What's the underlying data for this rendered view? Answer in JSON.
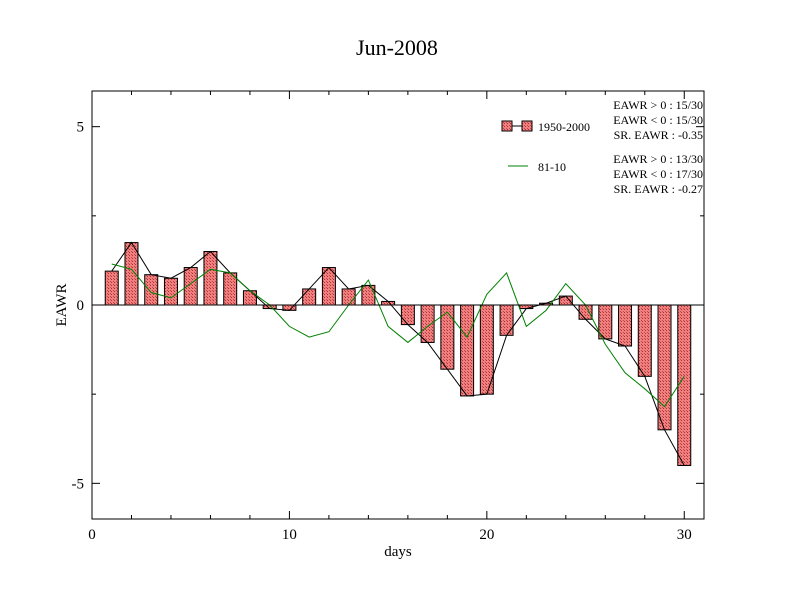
{
  "chart_data": {
    "type": "bar",
    "title": "Jun-2008",
    "xlabel": "days",
    "ylabel": "EAWR",
    "xlim": [
      0,
      31
    ],
    "ylim": [
      -6,
      6
    ],
    "xticks": [
      0,
      10,
      20,
      30
    ],
    "yticks": [
      -5,
      0,
      5
    ],
    "grid": false,
    "legend_position": "top-right",
    "series": [
      {
        "name": "1950-2000",
        "kind": "bar",
        "color": "#f08080",
        "x": [
          1,
          2,
          3,
          4,
          5,
          6,
          7,
          8,
          9,
          10,
          11,
          12,
          13,
          14,
          15,
          16,
          17,
          18,
          19,
          20,
          21,
          22,
          23,
          24,
          25,
          26,
          27,
          28,
          29,
          30
        ],
        "values": [
          0.95,
          1.75,
          0.85,
          0.75,
          1.05,
          1.5,
          0.9,
          0.4,
          -0.1,
          -0.15,
          0.45,
          1.05,
          0.45,
          0.55,
          0.1,
          -0.55,
          -1.05,
          -1.8,
          -2.55,
          -2.5,
          -0.85,
          -0.1,
          0.05,
          0.25,
          -0.4,
          -0.95,
          -1.15,
          -2.0,
          -3.5,
          -4.5
        ]
      },
      {
        "name": "81-10",
        "kind": "line",
        "color": "#008000",
        "x": [
          1,
          2,
          3,
          4,
          5,
          6,
          7,
          8,
          9,
          10,
          11,
          12,
          13,
          14,
          15,
          16,
          17,
          18,
          19,
          20,
          21,
          22,
          23,
          24,
          25,
          26,
          27,
          28,
          29,
          30
        ],
        "values": [
          1.15,
          1.0,
          0.35,
          0.2,
          0.6,
          1.0,
          0.9,
          0.4,
          0.0,
          -0.6,
          -0.9,
          -0.75,
          0.0,
          0.7,
          -0.6,
          -1.05,
          -0.6,
          -0.2,
          -0.9,
          0.3,
          0.9,
          -0.6,
          -0.15,
          0.6,
          0.0,
          -1.1,
          -1.9,
          -2.35,
          -2.85,
          -2.0
        ]
      }
    ],
    "stats": [
      {
        "series": "1950-2000",
        "lines": [
          "EAWR > 0 : 15/30",
          "EAWR < 0 : 15/30",
          "SR. EAWR : -0.35"
        ]
      },
      {
        "series": "81-10",
        "lines": [
          "EAWR > 0 : 13/30",
          "EAWR < 0 : 17/30",
          "SR. EAWR : -0.27"
        ]
      }
    ]
  }
}
